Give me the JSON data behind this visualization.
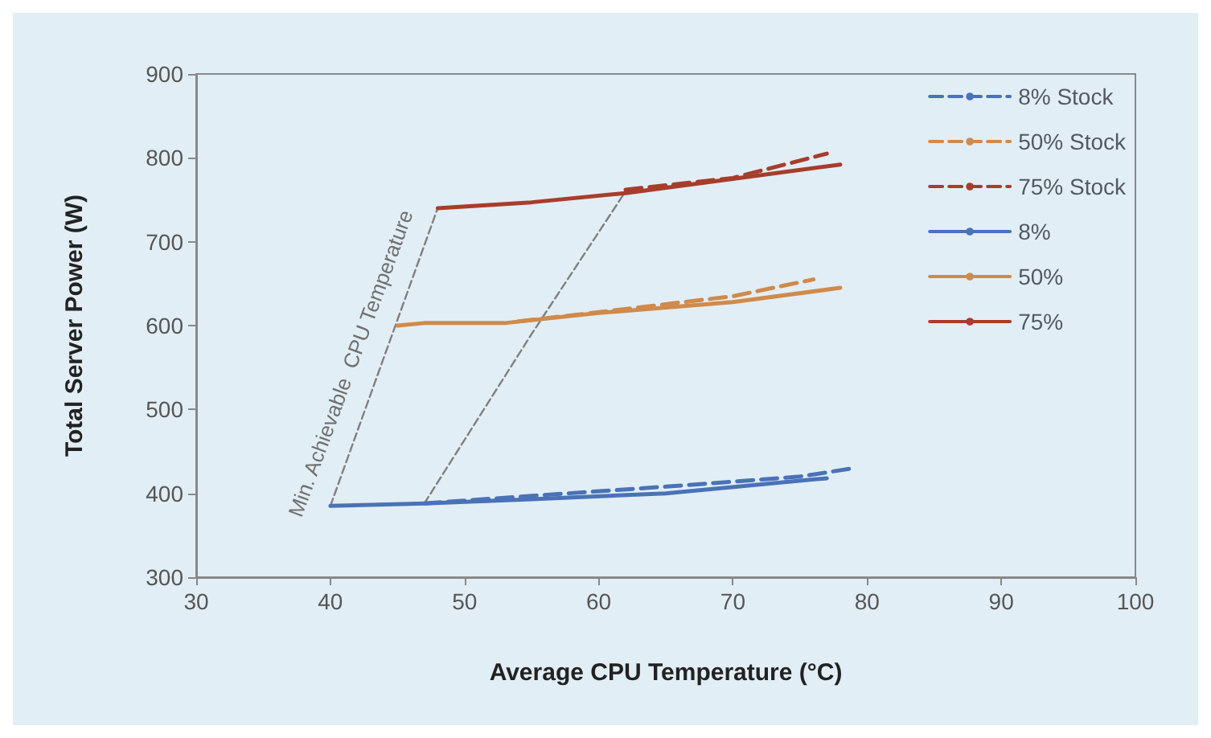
{
  "chart_data": {
    "type": "line",
    "xlabel": "Average CPU Temperature (°C)",
    "ylabel": "Total Server Power (W)",
    "xlim": [
      30,
      100
    ],
    "xticks": [
      30,
      40,
      50,
      60,
      70,
      80,
      90,
      100
    ],
    "ylim": [
      300,
      900
    ],
    "yticks": [
      300,
      400,
      500,
      600,
      700,
      800,
      900
    ],
    "grid": false,
    "legend": "top right",
    "marker": "none",
    "annotations": [
      "Min. Achievable  CPU Temperature"
    ],
    "series": [
      {
        "name": "8% Stock",
        "color": "#4a72b8",
        "line_style": "dashed",
        "x": [
          47,
          55,
          65,
          75,
          79
        ],
        "values": [
          388,
          397,
          408,
          420,
          430
        ]
      },
      {
        "name": "50% Stock",
        "color": "#d08a4a",
        "line_style": "dashed",
        "x": [
          54,
          60,
          70,
          76
        ],
        "values": [
          605,
          616,
          635,
          655
        ]
      },
      {
        "name": "75% Stock",
        "color": "#a83d2c",
        "line_style": "dashed",
        "x": [
          62,
          70,
          77
        ],
        "values": [
          762,
          776,
          805
        ]
      },
      {
        "name": "8%",
        "color": "#4a72b8",
        "line_style": "solid",
        "x": [
          40,
          47,
          55,
          65,
          77
        ],
        "values": [
          385,
          388,
          393,
          400,
          418
        ]
      },
      {
        "name": "50%",
        "color": "#d08a4a",
        "line_style": "solid",
        "x": [
          45,
          47,
          53,
          60,
          70,
          78
        ],
        "values": [
          600,
          603,
          603,
          615,
          628,
          645
        ]
      },
      {
        "name": "75%",
        "color": "#a83d2c",
        "line_style": "solid",
        "x": [
          48,
          55,
          62,
          70,
          78
        ],
        "values": [
          740,
          747,
          758,
          775,
          792
        ]
      },
      {
        "color": "#7f7f7f",
        "line_style": "dashed",
        "x": [
          40,
          48
        ],
        "values": [
          385,
          740
        ]
      },
      {
        "color": "#7f7f7f",
        "line_style": "dashed",
        "x": [
          47,
          55,
          62
        ],
        "values": [
          388,
          590,
          760
        ]
      }
    ]
  }
}
